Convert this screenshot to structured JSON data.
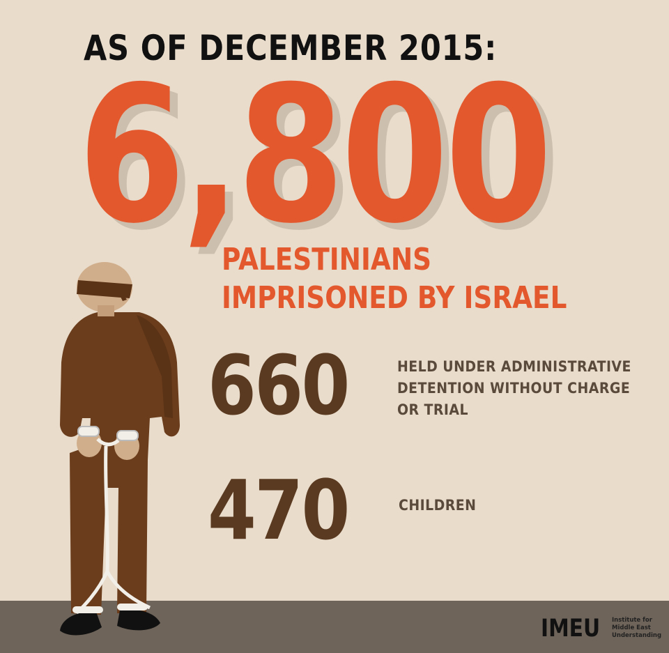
{
  "headline": "AS OF DECEMBER 2015:",
  "main_stat": {
    "value": "6,800",
    "label_line1": "PALESTINIANS",
    "label_line2": "IMPRISONED BY ISRAEL"
  },
  "stats": [
    {
      "value": "660",
      "label_lines": [
        "HELD UNDER ADMINISTRATIVE",
        "DETENTION WITHOUT CHARGE",
        "OR TRIAL"
      ]
    },
    {
      "value": "470",
      "label_lines": [
        "CHILDREN"
      ]
    }
  ],
  "logo": {
    "mark": "IMEU",
    "tag_lines": [
      "Institute for",
      "Middle East",
      "Understanding"
    ]
  },
  "colors": {
    "background": "#e9dccb",
    "accent_orange": "#e4582e",
    "brown": "#5a3a20",
    "floor": "#6e645a"
  },
  "illustration": {
    "icon": "blindfolded-shackled-prisoner-icon"
  }
}
